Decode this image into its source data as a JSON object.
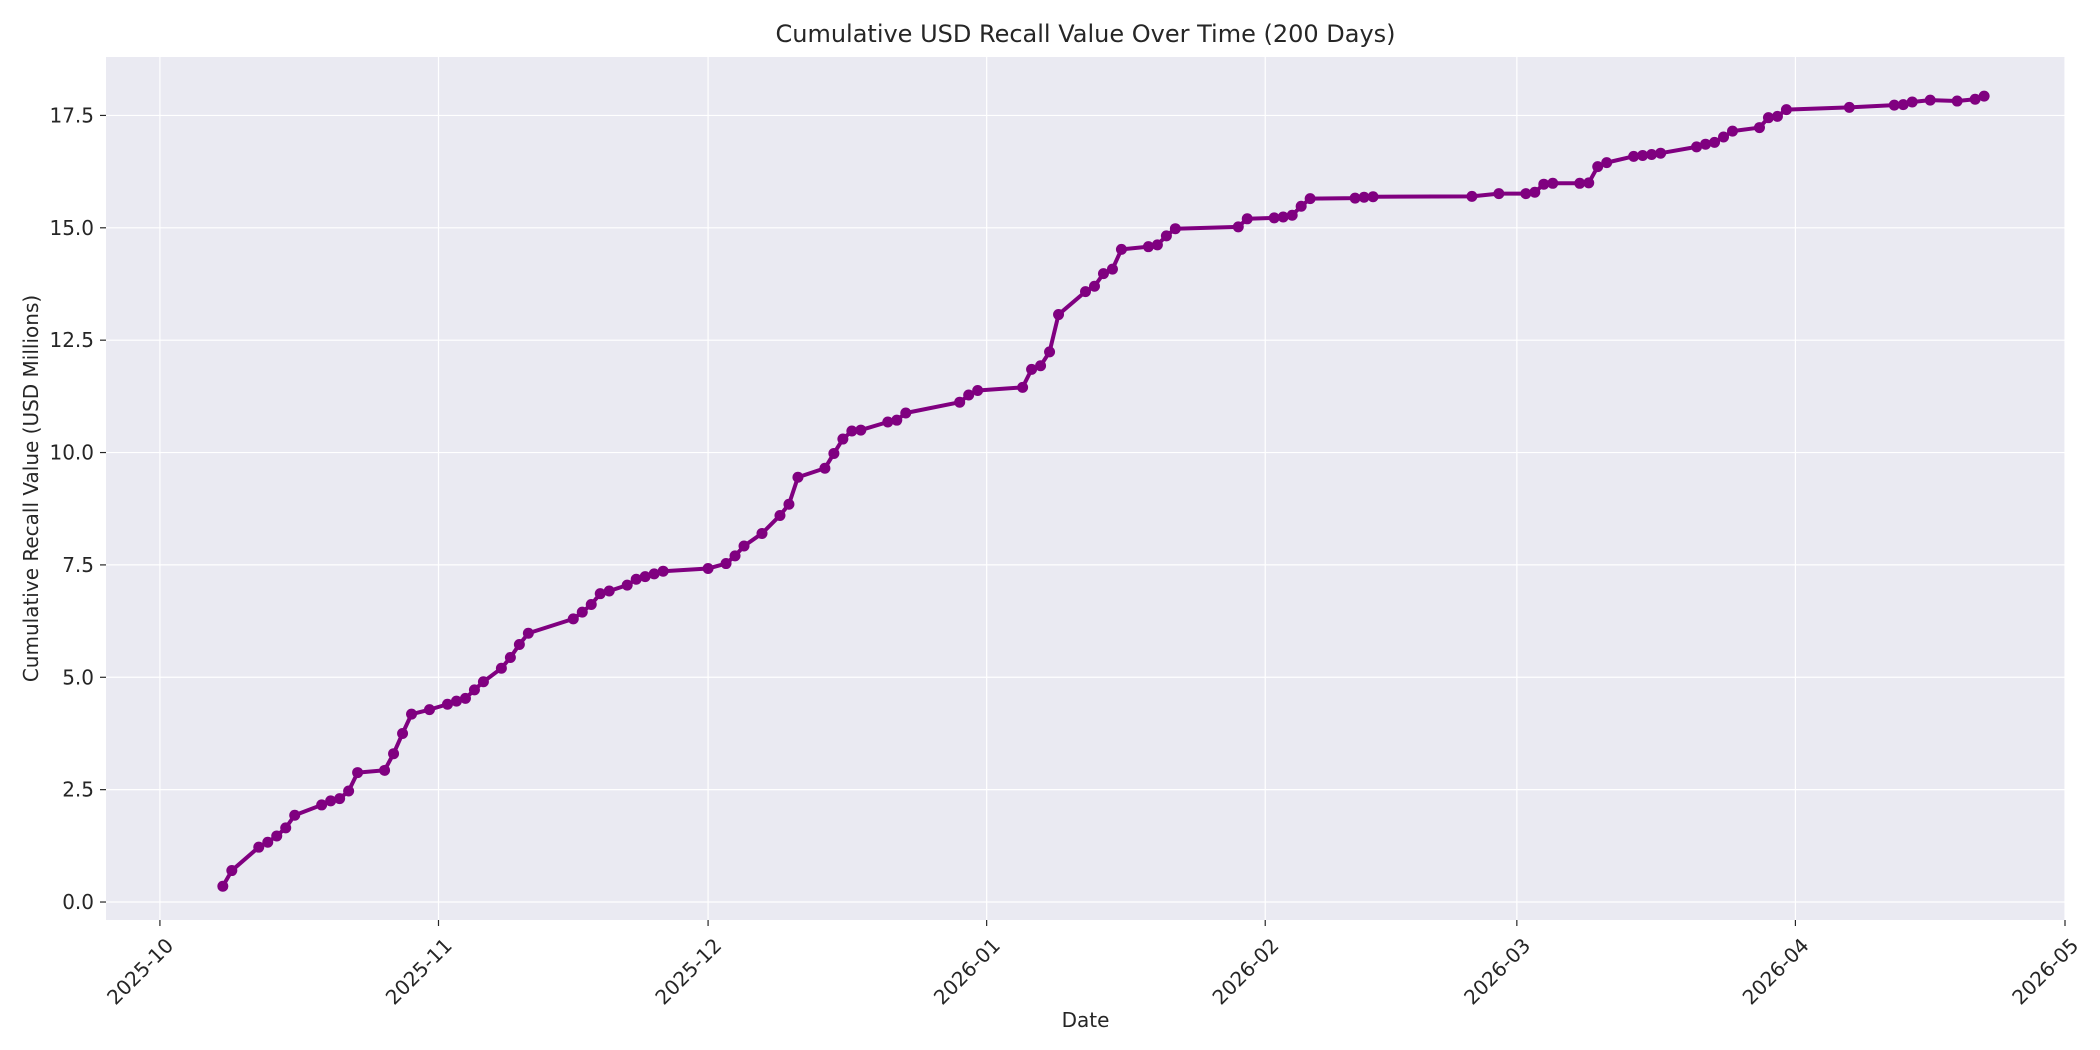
{
  "chart_data": {
    "type": "line",
    "title": "Cumulative USD Recall Value Over Time (200 Days)",
    "xlabel": "Date",
    "ylabel": "Cumulative Recall Value (USD Millions)",
    "xlim": [
      "2025-09-25",
      "2026-05-01"
    ],
    "ylim": [
      -0.4,
      18.8
    ],
    "grid": true,
    "x_ticks": [
      "2025-10-01",
      "2025-11-01",
      "2025-12-01",
      "2026-01-01",
      "2026-02-01",
      "2026-03-01",
      "2026-04-01",
      "2026-05-01"
    ],
    "x_tick_labels": [
      "2025-10",
      "2025-11",
      "2025-12",
      "2026-01",
      "2026-02",
      "2026-03",
      "2026-04",
      "2026-05"
    ],
    "y_ticks": [
      0,
      2.5,
      5,
      7.5,
      10,
      12.5,
      15,
      17.5
    ],
    "y_tick_labels": [
      "0.0",
      "2.5",
      "5.0",
      "7.5",
      "10.0",
      "12.5",
      "15.0",
      "17.5"
    ],
    "colors": {
      "series": "#800080",
      "plot_bg": "#eaeaf2",
      "grid": "#ffffff",
      "text": "#262626"
    },
    "series": [
      {
        "x": [
          "2025-10-08",
          "2025-10-09",
          "2025-10-12",
          "2025-10-13",
          "2025-10-14",
          "2025-10-15",
          "2025-10-16",
          "2025-10-19",
          "2025-10-20",
          "2025-10-21",
          "2025-10-22",
          "2025-10-23",
          "2025-10-26",
          "2025-10-27",
          "2025-10-28",
          "2025-10-29",
          "2025-10-31",
          "2025-11-02",
          "2025-11-03",
          "2025-11-04",
          "2025-11-05",
          "2025-11-06",
          "2025-11-08",
          "2025-11-09",
          "2025-11-10",
          "2025-11-11",
          "2025-11-16",
          "2025-11-17",
          "2025-11-18",
          "2025-11-19",
          "2025-11-20",
          "2025-11-22",
          "2025-11-23",
          "2025-11-24",
          "2025-11-25",
          "2025-11-26",
          "2025-12-01",
          "2025-12-03",
          "2025-12-04",
          "2025-12-05",
          "2025-12-07",
          "2025-12-09",
          "2025-12-10",
          "2025-12-11",
          "2025-12-14",
          "2025-12-15",
          "2025-12-16",
          "2025-12-17",
          "2025-12-18",
          "2025-12-21",
          "2025-12-22",
          "2025-12-23",
          "2025-12-29",
          "2025-12-30",
          "2025-12-31",
          "2026-01-05",
          "2026-01-06",
          "2026-01-07",
          "2026-01-08",
          "2026-01-09",
          "2026-01-12",
          "2026-01-13",
          "2026-01-14",
          "2026-01-15",
          "2026-01-16",
          "2026-01-19",
          "2026-01-20",
          "2026-01-21",
          "2026-01-22",
          "2026-01-29",
          "2026-01-30",
          "2026-02-02",
          "2026-02-03",
          "2026-02-04",
          "2026-02-05",
          "2026-02-06",
          "2026-02-11",
          "2026-02-12",
          "2026-02-13",
          "2026-02-24",
          "2026-02-27",
          "2026-03-02",
          "2026-03-03",
          "2026-03-04",
          "2026-03-05",
          "2026-03-08",
          "2026-03-09",
          "2026-03-10",
          "2026-03-11",
          "2026-03-14",
          "2026-03-15",
          "2026-03-16",
          "2026-03-17",
          "2026-03-21",
          "2026-03-22",
          "2026-03-23",
          "2026-03-24",
          "2026-03-25",
          "2026-03-28",
          "2026-03-29",
          "2026-03-30",
          "2026-03-31",
          "2026-04-07",
          "2026-04-12",
          "2026-04-13",
          "2026-04-14",
          "2026-04-16",
          "2026-04-19",
          "2026-04-21",
          "2026-04-22"
        ],
        "values": [
          0.35,
          0.7,
          1.22,
          1.33,
          1.47,
          1.65,
          1.93,
          2.16,
          2.25,
          2.3,
          2.47,
          2.88,
          2.93,
          3.3,
          3.75,
          4.18,
          4.28,
          4.4,
          4.47,
          4.53,
          4.72,
          4.9,
          5.2,
          5.44,
          5.73,
          5.98,
          6.3,
          6.45,
          6.62,
          6.86,
          6.92,
          7.05,
          7.18,
          7.24,
          7.3,
          7.36,
          7.42,
          7.53,
          7.7,
          7.92,
          8.2,
          8.6,
          8.85,
          9.45,
          9.65,
          9.98,
          10.3,
          10.48,
          10.5,
          10.68,
          10.72,
          10.88,
          11.12,
          11.28,
          11.38,
          11.45,
          11.85,
          11.93,
          12.24,
          13.07,
          13.58,
          13.7,
          13.98,
          14.08,
          14.52,
          14.58,
          14.62,
          14.82,
          14.98,
          15.02,
          15.2,
          15.22,
          15.24,
          15.28,
          15.48,
          15.65,
          15.66,
          15.68,
          15.69,
          15.7,
          15.76,
          15.76,
          15.79,
          15.97,
          15.99,
          15.99,
          16.0,
          16.36,
          16.45,
          16.59,
          16.61,
          16.63,
          16.66,
          16.8,
          16.86,
          16.9,
          17.02,
          17.15,
          17.23,
          17.45,
          17.48,
          17.63,
          17.68,
          17.73,
          17.74,
          17.8,
          17.84,
          17.82,
          17.86,
          17.93
        ]
      }
    ]
  }
}
